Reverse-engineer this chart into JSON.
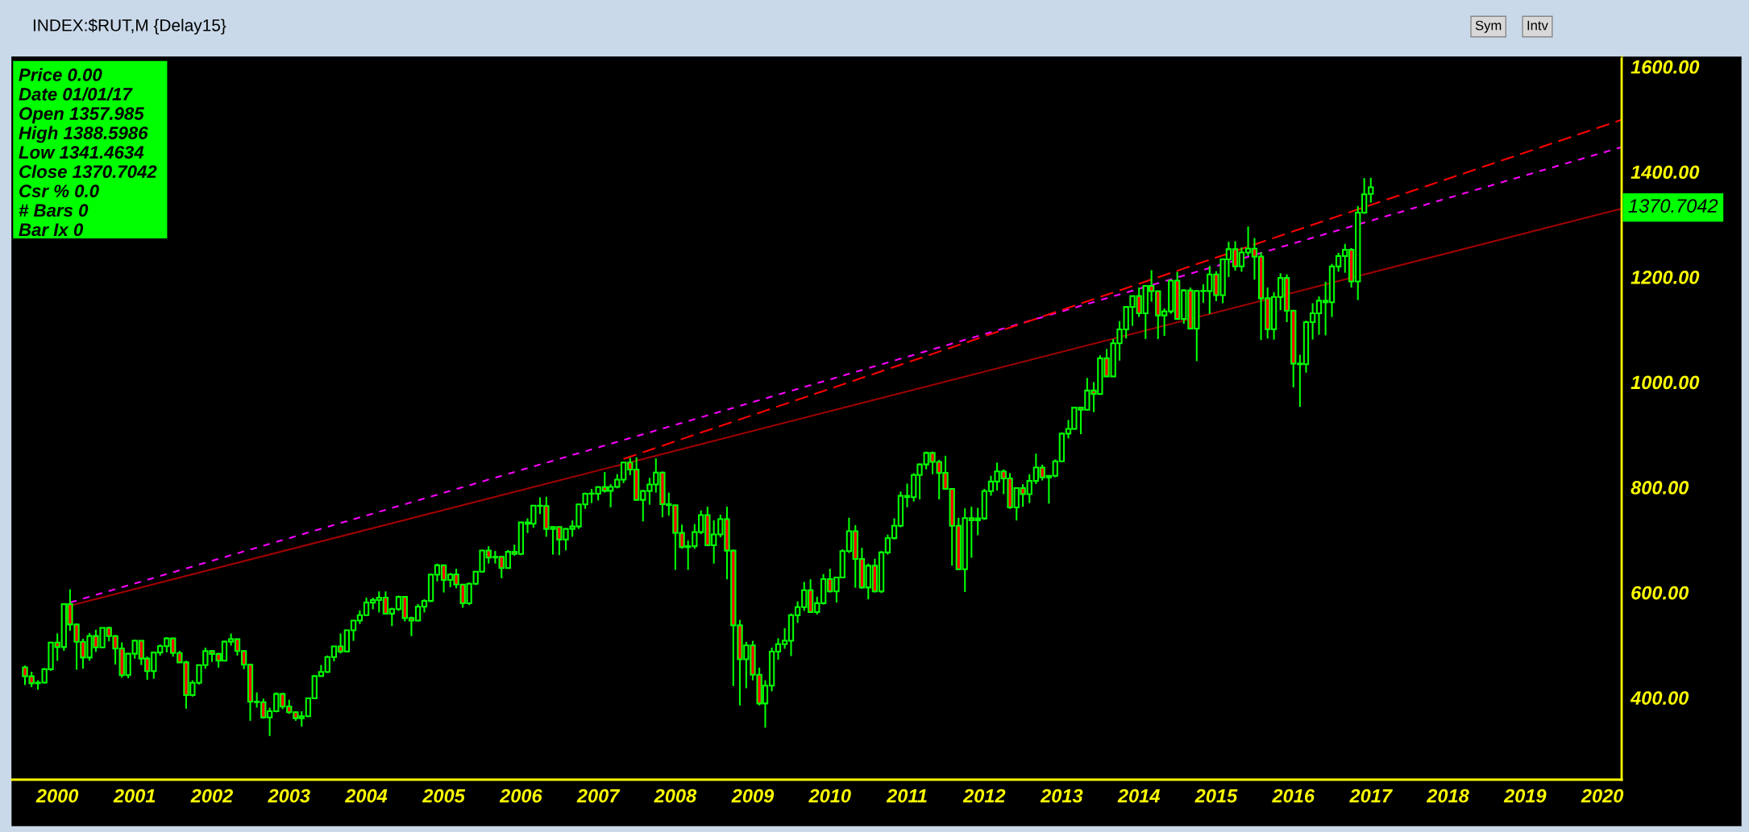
{
  "chart_data": {
    "type": "candlestick",
    "title": "INDEX:$RUT,M {Delay15}",
    "x": [
      "1999-08",
      "1999-09",
      "1999-10",
      "1999-11",
      "1999-12",
      "2000-01",
      "2000-02",
      "2000-03",
      "2000-04",
      "2000-05",
      "2000-06",
      "2000-07",
      "2000-08",
      "2000-09",
      "2000-10",
      "2000-11",
      "2000-12",
      "2001-01",
      "2001-02",
      "2001-03",
      "2001-04",
      "2001-05",
      "2001-06",
      "2001-07",
      "2001-08",
      "2001-09",
      "2001-10",
      "2001-11",
      "2001-12",
      "2002-01",
      "2002-02",
      "2002-03",
      "2002-04",
      "2002-05",
      "2002-06",
      "2002-07",
      "2002-08",
      "2002-09",
      "2002-10",
      "2002-11",
      "2002-12",
      "2003-01",
      "2003-02",
      "2003-03",
      "2003-04",
      "2003-05",
      "2003-06",
      "2003-07",
      "2003-08",
      "2003-09",
      "2003-10",
      "2003-11",
      "2003-12",
      "2004-01",
      "2004-02",
      "2004-03",
      "2004-04",
      "2004-05",
      "2004-06",
      "2004-07",
      "2004-08",
      "2004-09",
      "2004-10",
      "2004-11",
      "2004-12",
      "2005-01",
      "2005-02",
      "2005-03",
      "2005-04",
      "2005-05",
      "2005-06",
      "2005-07",
      "2005-08",
      "2005-09",
      "2005-10",
      "2005-11",
      "2005-12",
      "2006-01",
      "2006-02",
      "2006-03",
      "2006-04",
      "2006-05",
      "2006-06",
      "2006-07",
      "2006-08",
      "2006-09",
      "2006-10",
      "2006-11",
      "2006-12",
      "2007-01",
      "2007-02",
      "2007-03",
      "2007-04",
      "2007-05",
      "2007-06",
      "2007-07",
      "2007-08",
      "2007-09",
      "2007-10",
      "2007-11",
      "2007-12",
      "2008-01",
      "2008-02",
      "2008-03",
      "2008-04",
      "2008-05",
      "2008-06",
      "2008-07",
      "2008-08",
      "2008-09",
      "2008-10",
      "2008-11",
      "2008-12",
      "2009-01",
      "2009-02",
      "2009-03",
      "2009-04",
      "2009-05",
      "2009-06",
      "2009-07",
      "2009-08",
      "2009-09",
      "2009-10",
      "2009-11",
      "2009-12",
      "2010-01",
      "2010-02",
      "2010-03",
      "2010-04",
      "2010-05",
      "2010-06",
      "2010-07",
      "2010-08",
      "2010-09",
      "2010-10",
      "2010-11",
      "2010-12",
      "2011-01",
      "2011-02",
      "2011-03",
      "2011-04",
      "2011-05",
      "2011-06",
      "2011-07",
      "2011-08",
      "2011-09",
      "2011-10",
      "2011-11",
      "2011-12",
      "2012-01",
      "2012-02",
      "2012-03",
      "2012-04",
      "2012-05",
      "2012-06",
      "2012-07",
      "2012-08",
      "2012-09",
      "2012-10",
      "2012-11",
      "2012-12",
      "2013-01",
      "2013-02",
      "2013-03",
      "2013-04",
      "2013-05",
      "2013-06",
      "2013-07",
      "2013-08",
      "2013-09",
      "2013-10",
      "2013-11",
      "2013-12",
      "2014-01",
      "2014-02",
      "2014-03",
      "2014-04",
      "2014-05",
      "2014-06",
      "2014-07",
      "2014-08",
      "2014-09",
      "2014-10",
      "2014-11",
      "2014-12",
      "2015-01",
      "2015-02",
      "2015-03",
      "2015-04",
      "2015-05",
      "2015-06",
      "2015-07",
      "2015-08",
      "2015-09",
      "2015-10",
      "2015-11",
      "2015-12",
      "2016-01",
      "2016-02",
      "2016-03",
      "2016-04",
      "2016-05",
      "2016-06",
      "2016-07",
      "2016-08",
      "2016-09",
      "2016-10",
      "2016-11",
      "2016-12",
      "2017-01"
    ],
    "ohlc": [
      [
        457.7,
        461,
        424,
        440.7
      ],
      [
        440.7,
        449,
        420,
        427.3
      ],
      [
        427.3,
        433,
        415,
        428.6
      ],
      [
        428.6,
        456,
        427,
        454.1
      ],
      [
        454.1,
        505,
        451,
        504.8
      ],
      [
        504.8,
        522,
        470,
        496.2
      ],
      [
        496.2,
        578,
        489,
        577.7
      ],
      [
        577.7,
        606,
        527,
        539.1
      ],
      [
        539.1,
        541,
        453,
        506.3
      ],
      [
        506.3,
        512,
        455,
        476.2
      ],
      [
        476.2,
        523,
        470,
        517.2
      ],
      [
        517.2,
        529,
        487,
        495.5
      ],
      [
        495.5,
        533,
        494,
        532.7
      ],
      [
        532.7,
        535,
        507,
        517.0
      ],
      [
        517.0,
        519,
        463,
        493.2
      ],
      [
        493.2,
        505,
        438,
        442.8
      ],
      [
        442.8,
        484,
        437,
        483.5
      ],
      [
        483.5,
        510,
        474,
        508.3
      ],
      [
        508.3,
        509,
        462,
        474.4
      ],
      [
        474.4,
        478,
        434,
        450.5
      ],
      [
        450.5,
        487,
        436,
        485.8
      ],
      [
        485.8,
        501,
        480,
        497.8
      ],
      [
        497.8,
        515,
        486,
        512.6
      ],
      [
        512.6,
        513,
        478,
        484.8
      ],
      [
        484.8,
        489,
        466,
        467.1
      ],
      [
        467.1,
        470,
        379,
        404.9
      ],
      [
        404.9,
        433,
        402,
        428.2
      ],
      [
        428.2,
        463,
        425,
        461.8
      ],
      [
        461.8,
        495,
        455,
        488.5
      ],
      [
        488.5,
        490,
        468,
        483.1
      ],
      [
        483.1,
        485,
        457,
        470.3
      ],
      [
        470.3,
        508,
        469,
        506.5
      ],
      [
        506.5,
        522,
        499,
        511.2
      ],
      [
        511.2,
        512,
        480,
        488.6
      ],
      [
        488.6,
        490,
        454,
        462.6
      ],
      [
        462.6,
        464,
        356,
        392.4
      ],
      [
        392.4,
        410,
        381,
        391.4
      ],
      [
        391.4,
        398,
        360,
        362.3
      ],
      [
        362.3,
        381,
        327,
        374.1
      ],
      [
        374.1,
        410,
        372,
        407.0
      ],
      [
        407.0,
        409,
        378,
        383.1
      ],
      [
        383.1,
        396,
        369,
        372.2
      ],
      [
        372.2,
        374,
        356,
        361.0
      ],
      [
        361.0,
        374,
        345,
        364.5
      ],
      [
        364.5,
        400,
        363,
        398.7
      ],
      [
        398.7,
        442,
        397,
        441.0
      ],
      [
        441.0,
        462,
        440,
        449.0
      ],
      [
        449.0,
        480,
        447,
        477.2
      ],
      [
        477.2,
        498,
        469,
        497.4
      ],
      [
        497.4,
        522,
        484,
        487.7
      ],
      [
        487.7,
        529,
        487,
        528.2
      ],
      [
        528.2,
        547,
        508,
        546.5
      ],
      [
        546.5,
        566,
        540,
        556.9
      ],
      [
        556.9,
        590,
        556,
        580.8
      ],
      [
        580.8,
        590,
        568,
        585.6
      ],
      [
        585.6,
        602,
        562,
        590.3
      ],
      [
        590.3,
        602,
        558,
        559.8
      ],
      [
        559.8,
        571,
        536,
        568.3
      ],
      [
        568.3,
        594,
        565,
        591.5
      ],
      [
        591.5,
        592,
        545,
        551.3
      ],
      [
        551.3,
        554,
        517,
        546.5
      ],
      [
        546.5,
        578,
        545,
        572.9
      ],
      [
        572.9,
        587,
        562,
        583.8
      ],
      [
        583.8,
        636,
        582,
        633.8
      ],
      [
        633.8,
        655,
        621,
        651.6
      ],
      [
        651.6,
        652,
        600,
        624.0
      ],
      [
        624.0,
        637,
        610,
        634.1
      ],
      [
        634.1,
        645,
        608,
        615.1
      ],
      [
        615.1,
        616,
        571,
        579.4
      ],
      [
        579.4,
        619,
        576,
        616.7
      ],
      [
        616.7,
        640,
        614,
        639.7
      ],
      [
        639.7,
        681,
        638,
        679.8
      ],
      [
        679.8,
        688,
        655,
        666.5
      ],
      [
        666.5,
        679,
        655,
        667.8
      ],
      [
        667.8,
        668,
        627,
        646.6
      ],
      [
        646.6,
        681,
        645,
        677.3
      ],
      [
        677.3,
        691,
        670,
        673.2
      ],
      [
        673.2,
        734,
        671,
        733.2
      ],
      [
        733.2,
        741,
        713,
        730.6
      ],
      [
        730.6,
        766,
        723,
        765.1
      ],
      [
        765.1,
        781,
        749,
        764.5
      ],
      [
        764.5,
        782,
        706,
        721.0
      ],
      [
        721.0,
        726,
        672,
        724.7
      ],
      [
        724.7,
        725,
        671,
        700.6
      ],
      [
        700.6,
        722,
        680,
        721.0
      ],
      [
        721.0,
        737,
        706,
        725.6
      ],
      [
        725.6,
        769,
        721,
        767.6
      ],
      [
        767.6,
        790,
        759,
        787.7
      ],
      [
        787.7,
        797,
        770,
        787.7
      ],
      [
        787.7,
        802,
        775,
        800.3
      ],
      [
        800.3,
        829,
        790,
        793.3
      ],
      [
        793.3,
        806,
        762,
        800.7
      ],
      [
        800.7,
        825,
        798,
        814.6
      ],
      [
        814.6,
        848,
        808,
        847.2
      ],
      [
        847.2,
        856,
        823,
        833.7
      ],
      [
        833.7,
        857,
        775,
        776.1
      ],
      [
        776.1,
        795,
        735,
        792.9
      ],
      [
        792.9,
        818,
        767,
        805.5
      ],
      [
        805.5,
        855,
        790,
        828.0
      ],
      [
        828.0,
        830,
        743,
        767.8
      ],
      [
        767.8,
        790,
        746,
        766.0
      ],
      [
        766.0,
        766,
        643,
        713.3
      ],
      [
        713.3,
        729,
        683,
        686.2
      ],
      [
        686.2,
        699,
        643,
        688.0
      ],
      [
        688.0,
        730,
        683,
        714.8
      ],
      [
        714.8,
        756,
        711,
        747.3
      ],
      [
        747.3,
        763,
        688,
        689.7
      ],
      [
        689.7,
        737,
        655,
        710.5
      ],
      [
        710.5,
        748,
        705,
        739.5
      ],
      [
        739.5,
        763,
        625,
        679.6
      ],
      [
        679.6,
        681,
        422,
        537.5
      ],
      [
        537.5,
        548,
        385,
        473.1
      ],
      [
        473.1,
        506,
        418,
        499.5
      ],
      [
        499.5,
        508,
        433,
        443.5
      ],
      [
        443.5,
        457,
        385,
        389.0
      ],
      [
        389.0,
        433,
        343,
        422.8
      ],
      [
        422.8,
        495,
        412,
        487.6
      ],
      [
        487.6,
        513,
        472,
        501.6
      ],
      [
        501.6,
        532,
        493,
        508.3
      ],
      [
        508.3,
        560,
        479,
        556.7
      ],
      [
        556.7,
        583,
        542,
        572.1
      ],
      [
        572.1,
        620,
        565,
        604.3
      ],
      [
        604.3,
        625,
        561,
        562.8
      ],
      [
        562.8,
        592,
        558,
        579.7
      ],
      [
        579.7,
        635,
        577,
        625.4
      ],
      [
        625.4,
        645,
        600,
        602.0
      ],
      [
        602.0,
        630,
        581,
        628.6
      ],
      [
        628.6,
        682,
        627,
        678.6
      ],
      [
        678.6,
        742,
        675,
        716.6
      ],
      [
        716.6,
        728,
        609,
        663.6
      ],
      [
        663.6,
        685,
        607,
        609.5
      ],
      [
        609.5,
        655,
        587,
        650.9
      ],
      [
        650.9,
        664,
        600,
        602.1
      ],
      [
        602.1,
        679,
        599,
        676.1
      ],
      [
        676.1,
        710,
        672,
        703.4
      ],
      [
        703.4,
        741,
        701,
        727.0
      ],
      [
        727.0,
        792,
        724,
        783.7
      ],
      [
        783.7,
        807,
        762,
        781.3
      ],
      [
        781.3,
        827,
        773,
        823.5
      ],
      [
        823.5,
        845,
        777,
        843.5
      ],
      [
        843.5,
        868,
        834,
        865.3
      ],
      [
        865.3,
        868,
        825,
        848.3
      ],
      [
        848.3,
        852,
        777,
        827.4
      ],
      [
        827.4,
        860,
        796,
        797.0
      ],
      [
        797.0,
        798,
        651,
        726.8
      ],
      [
        726.8,
        742,
        643,
        644.2
      ],
      [
        644.2,
        760,
        601,
        741.5
      ],
      [
        741.5,
        763,
        666,
        737.4
      ],
      [
        737.4,
        761,
        709,
        740.9
      ],
      [
        740.9,
        797,
        738,
        792.8
      ],
      [
        792.8,
        822,
        784,
        810.9
      ],
      [
        810.9,
        847,
        794,
        830.3
      ],
      [
        830.3,
        834,
        787,
        816.9
      ],
      [
        816.9,
        827,
        759,
        761.8
      ],
      [
        761.8,
        799,
        737,
        798.5
      ],
      [
        798.5,
        806,
        763,
        786.9
      ],
      [
        786.9,
        825,
        770,
        812.1
      ],
      [
        812.1,
        864,
        806,
        837.5
      ],
      [
        837.5,
        843,
        813,
        818.7
      ],
      [
        818.7,
        823,
        769,
        821.9
      ],
      [
        821.9,
        853,
        819,
        849.4
      ],
      [
        849.4,
        904,
        849,
        902.1
      ],
      [
        902.1,
        928,
        893,
        911.1
      ],
      [
        911.1,
        953,
        910,
        951.5
      ],
      [
        951.5,
        953,
        901,
        947.5
      ],
      [
        947.5,
        1008,
        946,
        984.1
      ],
      [
        984.1,
        1000,
        943,
        977.5
      ],
      [
        977.5,
        1051,
        976,
        1045.3
      ],
      [
        1045.3,
        1063,
        1010,
        1010.9
      ],
      [
        1010.9,
        1082,
        1010,
        1073.8
      ],
      [
        1073.8,
        1116,
        1041,
        1100.2
      ],
      [
        1100.2,
        1143,
        1083,
        1142.9
      ],
      [
        1142.9,
        1164,
        1107,
        1163.6
      ],
      [
        1163.6,
        1180,
        1124,
        1130.9
      ],
      [
        1130.9,
        1184,
        1082,
        1183.0
      ],
      [
        1183.0,
        1213,
        1153,
        1173.0
      ],
      [
        1173.0,
        1174,
        1082,
        1126.9
      ],
      [
        1126.9,
        1140,
        1088,
        1134.5
      ],
      [
        1134.5,
        1195,
        1130,
        1193.0
      ],
      [
        1193.0,
        1210,
        1120,
        1120.1
      ],
      [
        1120.1,
        1177,
        1111,
        1174.4
      ],
      [
        1174.4,
        1180,
        1101,
        1101.7
      ],
      [
        1101.7,
        1175,
        1040,
        1173.5
      ],
      [
        1173.5,
        1186,
        1151,
        1173.2
      ],
      [
        1173.2,
        1221,
        1130,
        1204.7
      ],
      [
        1204.7,
        1211,
        1154,
        1165.4
      ],
      [
        1165.4,
        1234,
        1150,
        1233.4
      ],
      [
        1233.4,
        1267,
        1200,
        1252.8
      ],
      [
        1252.8,
        1268,
        1212,
        1220.1
      ],
      [
        1220.1,
        1256,
        1210,
        1246.5
      ],
      [
        1246.5,
        1296,
        1240,
        1253.9
      ],
      [
        1253.9,
        1274,
        1195,
        1238.7
      ],
      [
        1238.7,
        1247,
        1080,
        1159.4
      ],
      [
        1159.4,
        1180,
        1083,
        1100.7
      ],
      [
        1100.7,
        1171,
        1081,
        1161.9
      ],
      [
        1161.9,
        1207,
        1137,
        1198.1
      ],
      [
        1198.1,
        1205,
        1114,
        1135.9
      ],
      [
        1135.9,
        1137,
        990,
        1035.4
      ],
      [
        1035.4,
        1052,
        953,
        1033.9
      ],
      [
        1033.9,
        1117,
        1018,
        1114.0
      ],
      [
        1114.0,
        1150,
        1081,
        1130.8
      ],
      [
        1130.8,
        1163,
        1090,
        1154.8
      ],
      [
        1154.8,
        1191,
        1089,
        1151.9
      ],
      [
        1151.9,
        1225,
        1124,
        1219.9
      ],
      [
        1219.9,
        1246,
        1210,
        1239.9
      ],
      [
        1239.9,
        1263,
        1208,
        1251.7
      ],
      [
        1251.7,
        1255,
        1180,
        1191.4
      ],
      [
        1191.4,
        1335,
        1156,
        1322.3
      ],
      [
        1322.3,
        1388,
        1320,
        1357.1
      ],
      [
        1357.985,
        1388.5986,
        1341.4634,
        1370.7042
      ]
    ],
    "color": "#00ff00",
    "colors": [
      "#ff0000",
      "#ff0000",
      "#00ff00",
      "#00ff00",
      "#00ff00",
      "#ff0000",
      "#00ff00",
      "#ff0000",
      "#ff0000",
      "#ff0000",
      "#00ff00",
      "#ff0000",
      "#00ff00",
      "#ff0000",
      "#ff0000",
      "#ff0000",
      "#00ff00",
      "#00ff00",
      "#ff0000",
      "#ff0000",
      "#00ff00",
      "#00ff00",
      "#00ff00",
      "#ff0000",
      "#ff0000",
      "#ff0000",
      "#00ff00",
      "#00ff00",
      "#00ff00",
      "#ff0000",
      "#ff0000",
      "#00ff00",
      "#00ff00",
      "#ff0000",
      "#ff0000",
      "#ff0000",
      "#ff0000",
      "#ff0000",
      "#00ff00",
      "#00ff00",
      "#ff0000",
      "#ff0000",
      "#ff0000",
      "#00ff00",
      "#00ff00",
      "#00ff00",
      "#00ff00",
      "#00ff00",
      "#00ff00",
      "#ff0000",
      "#00ff00",
      "#00ff00",
      "#00ff00",
      "#00ff00",
      "#00ff00",
      "#00ff00",
      "#ff0000",
      "#00ff00",
      "#00ff00",
      "#ff0000",
      "#ff0000",
      "#00ff00",
      "#00ff00",
      "#00ff00",
      "#00ff00",
      "#ff0000",
      "#00ff00",
      "#ff0000",
      "#ff0000",
      "#00ff00",
      "#00ff00",
      "#00ff00",
      "#ff0000",
      "#00ff00",
      "#ff0000",
      "#00ff00",
      "#ff0000",
      "#00ff00",
      "#ff0000",
      "#00ff00",
      "#ff0000",
      "#ff0000",
      "#00ff00",
      "#ff0000",
      "#00ff00",
      "#00ff00",
      "#00ff00",
      "#00ff00",
      "#00ff00",
      "#00ff00",
      "#ff0000",
      "#00ff00",
      "#00ff00",
      "#00ff00",
      "#ff0000",
      "#ff0000",
      "#00ff00",
      "#00ff00",
      "#00ff00",
      "#ff0000",
      "#ff0000",
      "#ff0000",
      "#ff0000",
      "#00ff00",
      "#00ff00",
      "#00ff00",
      "#ff0000",
      "#00ff00",
      "#00ff00",
      "#ff0000",
      "#ff0000",
      "#ff0000",
      "#00ff00",
      "#ff0000",
      "#ff0000",
      "#00ff00",
      "#00ff00",
      "#00ff00",
      "#00ff00",
      "#00ff00",
      "#00ff00",
      "#00ff00",
      "#ff0000",
      "#00ff00",
      "#00ff00",
      "#ff0000",
      "#00ff00",
      "#00ff00",
      "#00ff00",
      "#ff0000",
      "#ff0000",
      "#00ff00",
      "#ff0000",
      "#00ff00",
      "#00ff00",
      "#00ff00",
      "#00ff00",
      "#ff0000",
      "#00ff00",
      "#00ff00",
      "#00ff00",
      "#ff0000",
      "#ff0000",
      "#ff0000",
      "#ff0000",
      "#ff0000",
      "#00ff00",
      "#ff0000",
      "#00ff00",
      "#00ff00",
      "#00ff00",
      "#00ff00",
      "#ff0000",
      "#ff0000",
      "#00ff00",
      "#ff0000",
      "#00ff00",
      "#00ff00",
      "#ff0000",
      "#00ff00",
      "#00ff00",
      "#00ff00",
      "#00ff00",
      "#00ff00",
      "#ff0000",
      "#00ff00",
      "#ff0000",
      "#00ff00",
      "#ff0000",
      "#00ff00",
      "#00ff00",
      "#00ff00",
      "#00ff00",
      "#ff0000",
      "#00ff00",
      "#ff0000",
      "#ff0000",
      "#00ff00",
      "#00ff00",
      "#ff0000",
      "#00ff00",
      "#ff0000",
      "#00ff00",
      "#ff0000",
      "#00ff00",
      "#ff0000",
      "#00ff00",
      "#00ff00",
      "#ff0000",
      "#00ff00",
      "#00ff00",
      "#ff0000",
      "#ff0000",
      "#ff0000",
      "#00ff00",
      "#00ff00",
      "#ff0000",
      "#ff0000",
      "#ff0000",
      "#00ff00",
      "#00ff00",
      "#00ff00",
      "#ff0000",
      "#00ff00",
      "#00ff00",
      "#00ff00",
      "#ff0000",
      "#00ff00",
      "#00ff00",
      "#00ff00"
    ],
    "series": [
      {
        "type": "line",
        "color": "#ff00ff",
        "line_style": "dotted",
        "x": [
          "2000-03",
          "2020-04"
        ],
        "values": [
          581,
          1447
        ]
      },
      {
        "type": "line",
        "color": "#ff0000",
        "line_style": "dashed",
        "x": [
          "2007-05",
          "2020-04"
        ],
        "values": [
          854,
          1499
        ]
      },
      {
        "type": "line",
        "color": "#a00000",
        "line_style": "solid",
        "x": [
          "2000-03",
          "2020-04"
        ],
        "values": [
          575,
          1330
        ]
      }
    ],
    "xlim": [
      "1999-06",
      "2020-04"
    ],
    "xticks": [
      {
        "value": "2000-01",
        "label": "2000"
      },
      {
        "value": "2001-01",
        "label": "2001"
      },
      {
        "value": "2002-01",
        "label": "2002"
      },
      {
        "value": "2003-01",
        "label": "2003"
      },
      {
        "value": "2004-01",
        "label": "2004"
      },
      {
        "value": "2005-01",
        "label": "2005"
      },
      {
        "value": "2006-01",
        "label": "2006"
      },
      {
        "value": "2007-01",
        "label": "2007"
      },
      {
        "value": "2008-01",
        "label": "2008"
      },
      {
        "value": "2009-01",
        "label": "2009"
      },
      {
        "value": "2010-01",
        "label": "2010"
      },
      {
        "value": "2011-01",
        "label": "2011"
      },
      {
        "value": "2012-01",
        "label": "2012"
      },
      {
        "value": "2013-01",
        "label": "2013"
      },
      {
        "value": "2014-01",
        "label": "2014"
      },
      {
        "value": "2015-01",
        "label": "2015"
      },
      {
        "value": "2016-01",
        "label": "2016"
      },
      {
        "value": "2017-01",
        "label": "2017"
      },
      {
        "value": "2018-01",
        "label": "2018"
      },
      {
        "value": "2019-01",
        "label": "2019"
      },
      {
        "value": "2020-01",
        "label": "2020"
      }
    ],
    "ylim": [
      244,
      1618
    ],
    "yticks": [
      {
        "value": 400,
        "label": "400.00"
      },
      {
        "value": 600,
        "label": "600.00"
      },
      {
        "value": 800,
        "label": "800.00"
      },
      {
        "value": 1000,
        "label": "1000.00"
      },
      {
        "value": 1200,
        "label": "1200.00"
      },
      {
        "value": 1400,
        "label": "1400.00"
      },
      {
        "value": 1600,
        "label": "1600.00"
      }
    ],
    "grid": false,
    "legend": false,
    "annotations": [
      "Price 0.00",
      "Date 01/01/17",
      "Open 1357.985",
      "High 1388.5986",
      "Low 1341.4634",
      "Close 1370.7042",
      "Csr % 0.0",
      "# Bars 0",
      "Bar Ix 0",
      "1370.7042",
      "Sym",
      "Intv"
    ]
  }
}
